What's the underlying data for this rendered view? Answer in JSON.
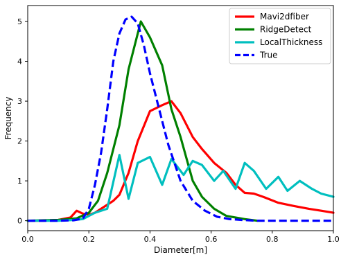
{
  "chart_data": {
    "type": "line",
    "title": "",
    "xlabel": "Diameter[m]",
    "ylabel": "Frequency",
    "xlim": [
      0.0,
      1.0
    ],
    "ylim": [
      -0.25,
      5.4
    ],
    "x_ticks": [
      0.0,
      0.2,
      0.4,
      0.6,
      0.8,
      1.0
    ],
    "x_tick_labels": [
      "0.0",
      "0.2",
      "0.4",
      "0.6",
      "0.8",
      "1.0"
    ],
    "y_ticks": [
      0,
      1,
      2,
      3,
      4,
      5
    ],
    "y_tick_labels": [
      "0",
      "1",
      "2",
      "3",
      "4",
      "5"
    ],
    "grid": false,
    "legend_position": "top-right",
    "series": [
      {
        "name": "Mavi2dfiber",
        "color": "#ff0000",
        "dash": "solid",
        "x": [
          0.0,
          0.05,
          0.1,
          0.14,
          0.16,
          0.18,
          0.2,
          0.22,
          0.24,
          0.26,
          0.28,
          0.3,
          0.33,
          0.36,
          0.4,
          0.44,
          0.47,
          0.5,
          0.54,
          0.57,
          0.61,
          0.65,
          0.68,
          0.71,
          0.74,
          0.77,
          0.82,
          0.87,
          0.92,
          0.96,
          1.0
        ],
        "y": [
          0.0,
          0.0,
          0.02,
          0.08,
          0.25,
          0.18,
          0.15,
          0.2,
          0.3,
          0.4,
          0.5,
          0.65,
          1.2,
          2.0,
          2.75,
          2.9,
          3.0,
          2.7,
          2.1,
          1.8,
          1.45,
          1.2,
          0.9,
          0.7,
          0.68,
          0.6,
          0.45,
          0.37,
          0.3,
          0.25,
          0.2
        ]
      },
      {
        "name": "RidgeDetect",
        "color": "#008000",
        "dash": "solid",
        "x": [
          0.0,
          0.1,
          0.16,
          0.2,
          0.23,
          0.26,
          0.3,
          0.33,
          0.37,
          0.4,
          0.44,
          0.47,
          0.5,
          0.54,
          0.57,
          0.61,
          0.65,
          0.71,
          0.75
        ],
        "y": [
          0.0,
          0.02,
          0.06,
          0.2,
          0.5,
          1.2,
          2.4,
          3.8,
          5.0,
          4.6,
          3.9,
          2.8,
          2.1,
          1.0,
          0.6,
          0.3,
          0.12,
          0.04,
          0.0
        ]
      },
      {
        "name": "LocalThickness",
        "color": "#00bfbf",
        "dash": "solid",
        "x": [
          0.0,
          0.1,
          0.15,
          0.18,
          0.22,
          0.26,
          0.3,
          0.33,
          0.36,
          0.4,
          0.44,
          0.47,
          0.51,
          0.54,
          0.57,
          0.61,
          0.64,
          0.68,
          0.71,
          0.74,
          0.78,
          0.82,
          0.85,
          0.89,
          0.93,
          0.96,
          1.0
        ],
        "y": [
          0.0,
          0.0,
          0.02,
          0.04,
          0.2,
          0.3,
          1.65,
          0.55,
          1.45,
          1.6,
          0.9,
          1.55,
          1.15,
          1.5,
          1.4,
          1.0,
          1.25,
          0.8,
          1.45,
          1.25,
          0.8,
          1.1,
          0.75,
          1.0,
          0.8,
          0.68,
          0.6
        ]
      },
      {
        "name": "True",
        "color": "#0000ff",
        "dash": "dashed",
        "x": [
          0.0,
          0.1,
          0.15,
          0.18,
          0.2,
          0.22,
          0.24,
          0.26,
          0.28,
          0.3,
          0.32,
          0.34,
          0.36,
          0.38,
          0.4,
          0.43,
          0.46,
          0.5,
          0.54,
          0.58,
          0.62,
          0.66,
          0.7,
          0.75,
          0.8,
          0.9,
          1.0
        ],
        "y": [
          0.0,
          0.0,
          0.01,
          0.05,
          0.3,
          0.9,
          1.7,
          2.8,
          4.0,
          4.7,
          5.05,
          5.12,
          4.95,
          4.4,
          3.7,
          2.8,
          1.9,
          1.0,
          0.5,
          0.25,
          0.1,
          0.04,
          0.02,
          0.0,
          0.0,
          0.0,
          0.0
        ]
      }
    ]
  }
}
